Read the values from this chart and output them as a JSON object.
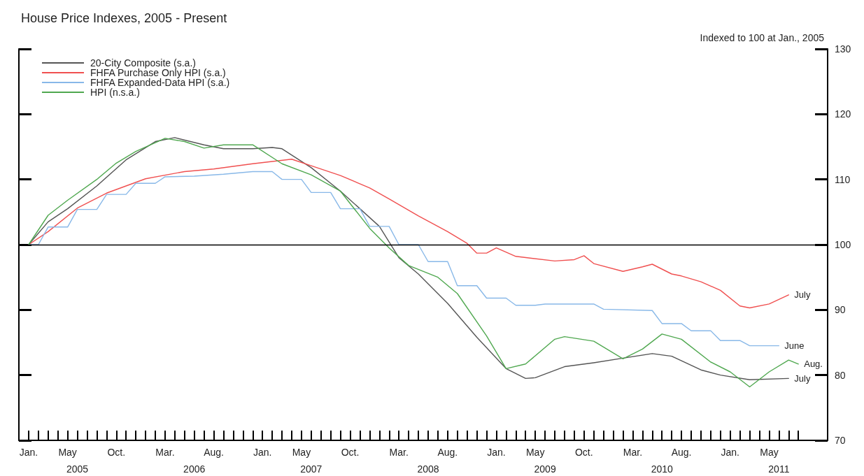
{
  "chart_data": {
    "type": "line",
    "title": "House Price Indexes, 2005 - Present",
    "subtitle": "Indexed to 100 at Jan., 2005",
    "legend": "top left",
    "grid": false,
    "marker": "none",
    "line_style": "solid",
    "xlim": [
      "2004-12",
      "2011-11"
    ],
    "xticks": [
      {
        "value": "2005-01",
        "label": "Jan."
      },
      {
        "value": "2005-02",
        "label": null
      },
      {
        "value": "2005-03",
        "label": null
      },
      {
        "value": "2005-04",
        "label": null
      },
      {
        "value": "2005-05",
        "label": "May"
      },
      {
        "value": "2005-06",
        "label": null
      },
      {
        "value": "2005-07",
        "label": null
      },
      {
        "value": "2005-08",
        "label": null
      },
      {
        "value": "2005-09",
        "label": null
      },
      {
        "value": "2005-10",
        "label": "Oct."
      },
      {
        "value": "2005-11",
        "label": null
      },
      {
        "value": "2005-12",
        "label": null
      },
      {
        "value": "2006-01",
        "label": null
      },
      {
        "value": "2006-02",
        "label": null
      },
      {
        "value": "2006-03",
        "label": "Mar."
      },
      {
        "value": "2006-04",
        "label": null
      },
      {
        "value": "2006-05",
        "label": null
      },
      {
        "value": "2006-06",
        "label": null
      },
      {
        "value": "2006-07",
        "label": null
      },
      {
        "value": "2006-08",
        "label": "Aug."
      },
      {
        "value": "2006-09",
        "label": null
      },
      {
        "value": "2006-10",
        "label": null
      },
      {
        "value": "2006-11",
        "label": null
      },
      {
        "value": "2006-12",
        "label": null
      },
      {
        "value": "2007-01",
        "label": "Jan."
      },
      {
        "value": "2007-02",
        "label": null
      },
      {
        "value": "2007-03",
        "label": null
      },
      {
        "value": "2007-04",
        "label": null
      },
      {
        "value": "2007-05",
        "label": "May"
      },
      {
        "value": "2007-06",
        "label": null
      },
      {
        "value": "2007-07",
        "label": null
      },
      {
        "value": "2007-08",
        "label": null
      },
      {
        "value": "2007-09",
        "label": null
      },
      {
        "value": "2007-10",
        "label": "Oct."
      },
      {
        "value": "2007-11",
        "label": null
      },
      {
        "value": "2007-12",
        "label": null
      },
      {
        "value": "2008-01",
        "label": null
      },
      {
        "value": "2008-02",
        "label": null
      },
      {
        "value": "2008-03",
        "label": "Mar."
      },
      {
        "value": "2008-04",
        "label": null
      },
      {
        "value": "2008-05",
        "label": null
      },
      {
        "value": "2008-06",
        "label": null
      },
      {
        "value": "2008-07",
        "label": null
      },
      {
        "value": "2008-08",
        "label": "Aug."
      },
      {
        "value": "2008-09",
        "label": null
      },
      {
        "value": "2008-10",
        "label": null
      },
      {
        "value": "2008-11",
        "label": null
      },
      {
        "value": "2008-12",
        "label": null
      },
      {
        "value": "2009-01",
        "label": "Jan."
      },
      {
        "value": "2009-02",
        "label": null
      },
      {
        "value": "2009-03",
        "label": null
      },
      {
        "value": "2009-04",
        "label": null
      },
      {
        "value": "2009-05",
        "label": "May"
      },
      {
        "value": "2009-06",
        "label": null
      },
      {
        "value": "2009-07",
        "label": null
      },
      {
        "value": "2009-08",
        "label": null
      },
      {
        "value": "2009-09",
        "label": null
      },
      {
        "value": "2009-10",
        "label": "Oct."
      },
      {
        "value": "2009-11",
        "label": null
      },
      {
        "value": "2009-12",
        "label": null
      },
      {
        "value": "2010-01",
        "label": null
      },
      {
        "value": "2010-02",
        "label": null
      },
      {
        "value": "2010-03",
        "label": "Mar."
      },
      {
        "value": "2010-04",
        "label": null
      },
      {
        "value": "2010-05",
        "label": null
      },
      {
        "value": "2010-06",
        "label": null
      },
      {
        "value": "2010-07",
        "label": null
      },
      {
        "value": "2010-08",
        "label": "Aug."
      },
      {
        "value": "2010-09",
        "label": null
      },
      {
        "value": "2010-10",
        "label": null
      },
      {
        "value": "2010-11",
        "label": null
      },
      {
        "value": "2010-12",
        "label": null
      },
      {
        "value": "2011-01",
        "label": "Jan."
      },
      {
        "value": "2011-02",
        "label": null
      },
      {
        "value": "2011-03",
        "label": null
      },
      {
        "value": "2011-04",
        "label": null
      },
      {
        "value": "2011-05",
        "label": "May"
      },
      {
        "value": "2011-06",
        "label": null
      },
      {
        "value": "2011-07",
        "label": null
      },
      {
        "value": "2011-08",
        "label": null
      }
    ],
    "x2lim": [
      "2004-12",
      "2011-11"
    ],
    "x2ticks": [
      {
        "value": "2005-06",
        "label": "2005"
      },
      {
        "value": "2006-06",
        "label": "2006"
      },
      {
        "value": "2007-06",
        "label": "2007"
      },
      {
        "value": "2008-06",
        "label": "2008"
      },
      {
        "value": "2009-06",
        "label": "2009"
      },
      {
        "value": "2010-06",
        "label": "2010"
      },
      {
        "value": "2011-06",
        "label": "2011"
      }
    ],
    "ylim": [
      70,
      130
    ],
    "yticks": [
      70,
      80,
      90,
      100,
      110,
      120,
      130
    ],
    "ref_lines": [
      {
        "axis": "y",
        "value": 100,
        "color": "#000000"
      }
    ],
    "annotations": [
      {
        "text": "July",
        "x": "2011-07",
        "y": 92.3
      },
      {
        "text": "June",
        "x": "2011-06",
        "y": 84.5
      },
      {
        "text": "Aug.",
        "x": "2011-08",
        "y": 81.7
      },
      {
        "text": "July",
        "x": "2011-07",
        "y": 79.5
      }
    ],
    "series": [
      {
        "name": "20-City Composite (s.a.)",
        "color": "#555555",
        "x": [
          "2005-01",
          "2005-03",
          "2005-05",
          "2005-08",
          "2005-11",
          "2006-02",
          "2006-04",
          "2006-07",
          "2006-09",
          "2006-12",
          "2007-02",
          "2007-03",
          "2007-06",
          "2007-09",
          "2008-01",
          "2008-03",
          "2008-05",
          "2008-08",
          "2008-11",
          "2009-02",
          "2009-04",
          "2009-05",
          "2009-08",
          "2009-11",
          "2010-02",
          "2010-05",
          "2010-07",
          "2010-10",
          "2010-12",
          "2011-03",
          "2011-07"
        ],
        "values": [
          100,
          103.5,
          105.5,
          109,
          113,
          115.8,
          116.4,
          115.3,
          114.7,
          114.7,
          114.9,
          114.7,
          111.8,
          108.2,
          102.8,
          98,
          95.5,
          91,
          85.8,
          81,
          79.5,
          79.6,
          81.3,
          81.9,
          82.6,
          83.3,
          82.9,
          80.8,
          80,
          79.3,
          79.5
        ]
      },
      {
        "name": "FHFA Purchase Only HPI (s.a.)",
        "color": "#f05050",
        "x": [
          "2005-01",
          "2005-03",
          "2005-06",
          "2005-09",
          "2006-01",
          "2006-05",
          "2006-08",
          "2006-12",
          "2007-04",
          "2007-06",
          "2007-09",
          "2007-12",
          "2008-02",
          "2008-05",
          "2008-08",
          "2008-10",
          "2008-11",
          "2008-12",
          "2009-01",
          "2009-03",
          "2009-07",
          "2009-09",
          "2009-10",
          "2009-11",
          "2010-02",
          "2010-04",
          "2010-05",
          "2010-07",
          "2010-08",
          "2010-10",
          "2010-12",
          "2011-02",
          "2011-03",
          "2011-05",
          "2011-07"
        ],
        "values": [
          100,
          102,
          105.6,
          107.9,
          110.1,
          111.2,
          111.6,
          112.4,
          113.1,
          112.1,
          110.6,
          108.7,
          107,
          104.4,
          102,
          100.2,
          98.7,
          98.7,
          99.5,
          98.2,
          97.5,
          97.7,
          98.3,
          97.1,
          95.9,
          96.6,
          97,
          95.5,
          95.2,
          94.3,
          93,
          90.6,
          90.3,
          90.9,
          92.3
        ]
      },
      {
        "name": "FHFA Expanded-Data HPI (s.a.)",
        "color": "#88b8e8",
        "x": [
          "2005-01",
          "2005-02",
          "2005-03",
          "2005-05",
          "2005-06",
          "2005-08",
          "2005-09",
          "2005-11",
          "2005-12",
          "2006-02",
          "2006-03",
          "2006-06",
          "2006-09",
          "2006-12",
          "2007-02",
          "2007-03",
          "2007-05",
          "2007-06",
          "2007-08",
          "2007-09",
          "2007-11",
          "2007-12",
          "2008-02",
          "2008-03",
          "2008-05",
          "2008-06",
          "2008-08",
          "2008-09",
          "2008-11",
          "2008-12",
          "2009-02",
          "2009-03",
          "2009-05",
          "2009-06",
          "2009-11",
          "2009-12",
          "2010-05",
          "2010-06",
          "2010-08",
          "2010-09",
          "2010-11",
          "2010-12",
          "2011-02",
          "2011-03",
          "2011-06"
        ],
        "values": [
          100,
          100,
          102.7,
          102.7,
          105.4,
          105.4,
          107.7,
          107.7,
          109.4,
          109.4,
          110.4,
          110.5,
          110.8,
          111.2,
          111.2,
          110,
          110,
          108,
          108,
          105.5,
          105.5,
          102.8,
          102.8,
          100,
          100,
          97.4,
          97.4,
          93.7,
          93.7,
          91.8,
          91.8,
          90.7,
          90.7,
          90.9,
          90.9,
          90.1,
          89.9,
          87.9,
          87.9,
          86.8,
          86.8,
          85.3,
          85.3,
          84.5,
          84.5
        ]
      },
      {
        "name": "HPI (n.s.a.)",
        "color": "#50a850",
        "x": [
          "2005-01",
          "2005-03",
          "2005-05",
          "2005-08",
          "2005-10",
          "2005-12",
          "2006-03",
          "2006-05",
          "2006-07",
          "2006-09",
          "2006-12",
          "2007-03",
          "2007-06",
          "2007-09",
          "2007-12",
          "2008-02",
          "2008-04",
          "2008-07",
          "2008-09",
          "2008-12",
          "2009-02",
          "2009-04",
          "2009-07",
          "2009-08",
          "2009-11",
          "2010-02",
          "2010-04",
          "2010-06",
          "2010-08",
          "2010-11",
          "2011-01",
          "2011-03",
          "2011-05",
          "2011-07",
          "2011-08"
        ],
        "values": [
          100,
          104.5,
          106.8,
          110,
          112.5,
          114.3,
          116.3,
          115.8,
          114.8,
          115.3,
          115.3,
          112.4,
          110.7,
          108.2,
          102.5,
          99.5,
          96.8,
          95,
          92.5,
          86,
          81,
          81.7,
          85.5,
          85.9,
          85.2,
          82.5,
          84,
          86.3,
          85.5,
          82,
          80.5,
          78.2,
          80.5,
          82.3,
          81.7
        ]
      }
    ]
  }
}
